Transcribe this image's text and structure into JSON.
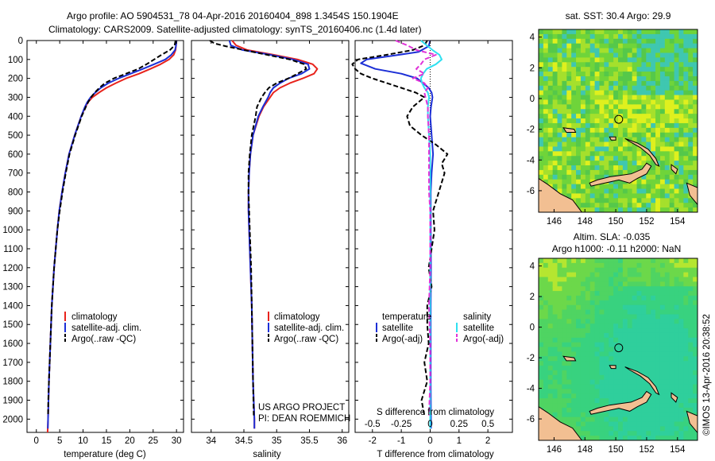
{
  "header": {
    "line1": "Argo profile: AO 5904531_78 04-Apr-2016 20160404_898 1.3454S 150.1904E",
    "line2": "Climatology: CARS2009. Satellite-adjusted climatology: synTS_20160406.nc (1.4d later)"
  },
  "colors": {
    "climatology": "#e8231c",
    "satellite": "#1c2fd6",
    "argo": "#000000",
    "satellite_salinity": "#2fe0f0",
    "argo_salinity": "#e033d8",
    "land": "#f2bf92"
  },
  "depth_axis": {
    "ticks": [
      "0",
      "100",
      "200",
      "300",
      "400",
      "500",
      "600",
      "700",
      "800",
      "900",
      "1000",
      "1100",
      "1200",
      "1300",
      "1400",
      "1500",
      "1600",
      "1700",
      "1800",
      "1900",
      "2000"
    ],
    "ylim": [
      0,
      2070
    ],
    "inverted": true
  },
  "chart_data": [
    {
      "type": "line",
      "name": "temperature",
      "xlabel": "temperature (deg C)",
      "xticks": [
        "0",
        "5",
        "10",
        "15",
        "20",
        "25",
        "30"
      ],
      "xlim": [
        -2,
        31.5
      ],
      "legend": [
        "climatology",
        "satellite-adj. clim.",
        "Argo(..raw -QC)"
      ],
      "series": [
        {
          "name": "climatology",
          "y": [
            0,
            25,
            50,
            75,
            100,
            125,
            150,
            175,
            200,
            225,
            250,
            275,
            300,
            325,
            350,
            400,
            500,
            600,
            700,
            800,
            900,
            1000,
            1200,
            1400,
            1600,
            1800,
            2000,
            2070
          ],
          "x": [
            30.0,
            29.9,
            29.8,
            29.4,
            28.4,
            26.6,
            24.4,
            22.0,
            19.2,
            17.0,
            15.0,
            13.4,
            12.0,
            11.1,
            10.5,
            9.6,
            8.2,
            7.0,
            6.2,
            5.5,
            4.9,
            4.5,
            3.8,
            3.3,
            3.0,
            2.7,
            2.5,
            2.4
          ]
        },
        {
          "name": "satellite-adj. clim.",
          "y": [
            0,
            25,
            50,
            75,
            100,
            125,
            150,
            175,
            200,
            225,
            250,
            275,
            300,
            325,
            350,
            400,
            500,
            600,
            700,
            800,
            900,
            1000,
            1200,
            1400,
            1600,
            1800,
            2000,
            2050
          ],
          "x": [
            30.0,
            29.9,
            29.7,
            28.9,
            27.6,
            25.2,
            22.8,
            20.2,
            17.6,
            15.4,
            13.8,
            12.6,
            11.6,
            10.9,
            10.4,
            9.6,
            8.2,
            7.0,
            6.2,
            5.5,
            4.9,
            4.5,
            3.8,
            3.3,
            3.0,
            2.7,
            2.5,
            2.45
          ]
        },
        {
          "name": "Argo(..raw -QC)",
          "y": [
            0,
            25,
            50,
            75,
            100,
            125,
            150,
            175,
            200,
            225,
            250,
            275,
            300,
            325,
            350,
            400,
            500,
            600,
            700,
            800,
            900,
            1000,
            1200,
            1400,
            1600,
            1800,
            1900,
            1980
          ],
          "x": [
            29.8,
            29.6,
            28.6,
            26.8,
            25.2,
            23.6,
            21.8,
            19.2,
            16.6,
            14.7,
            13.5,
            12.5,
            11.7,
            11.1,
            10.6,
            9.7,
            8.3,
            7.1,
            6.3,
            5.6,
            5.0,
            4.5,
            3.8,
            3.3,
            3.0,
            2.7,
            2.55,
            2.5
          ]
        }
      ]
    },
    {
      "type": "line",
      "name": "salinity",
      "xlabel": "salinity",
      "xticks": [
        "34",
        "34.5",
        "35",
        "35.5",
        "36"
      ],
      "xlim": [
        33.7,
        36.1
      ],
      "legend": [
        "climatology",
        "satellite-adj. clim.",
        "Argo(..raw -QC)"
      ],
      "annotation": [
        "US ARGO PROJECT",
        "PI: DEAN ROEMMICH"
      ],
      "series": [
        {
          "name": "climatology",
          "y": [
            0,
            25,
            50,
            75,
            100,
            125,
            150,
            175,
            200,
            225,
            250,
            275,
            300,
            350,
            400,
            500,
            600,
            700,
            800,
            900,
            1000,
            1200,
            1400,
            1600,
            1800,
            2000,
            2050
          ],
          "x": [
            34.32,
            34.38,
            34.55,
            34.95,
            35.32,
            35.55,
            35.62,
            35.57,
            35.4,
            35.2,
            35.05,
            34.95,
            34.9,
            34.8,
            34.73,
            34.64,
            34.6,
            34.58,
            34.57,
            34.57,
            34.58,
            34.6,
            34.62,
            34.63,
            34.64,
            34.66,
            34.66
          ]
        },
        {
          "name": "satellite-adj. clim.",
          "y": [
            0,
            25,
            50,
            75,
            100,
            125,
            150,
            175,
            200,
            225,
            250,
            275,
            300,
            350,
            400,
            500,
            600,
            700,
            800,
            900,
            1000,
            1200,
            1400,
            1600,
            1800,
            2000,
            2050
          ],
          "x": [
            34.28,
            34.3,
            34.48,
            34.9,
            35.25,
            35.48,
            35.5,
            35.38,
            35.18,
            35.05,
            34.95,
            34.9,
            34.87,
            34.79,
            34.72,
            34.64,
            34.6,
            34.58,
            34.57,
            34.57,
            34.58,
            34.6,
            34.62,
            34.63,
            34.64,
            34.66,
            34.66
          ]
        },
        {
          "name": "Argo(..raw -QC)",
          "y": [
            0,
            15,
            30,
            50,
            75,
            100,
            125,
            150,
            175,
            200,
            225,
            250,
            275,
            300,
            350,
            400,
            500,
            600,
            700,
            800,
            900,
            1000,
            1200,
            1400,
            1600,
            1800,
            1980
          ],
          "x": [
            33.98,
            34.05,
            34.22,
            34.5,
            34.85,
            35.2,
            35.42,
            35.45,
            35.32,
            35.18,
            35.0,
            34.88,
            34.82,
            34.77,
            34.7,
            34.68,
            34.62,
            34.59,
            34.57,
            34.57,
            34.58,
            34.59,
            34.61,
            34.62,
            34.63,
            34.64,
            34.65
          ]
        }
      ]
    },
    {
      "type": "line",
      "name": "differences",
      "xlabel": "T difference from climatology",
      "xlabel_top": "S difference from climatology",
      "xticks": [
        "-2",
        "-1",
        "0",
        "1",
        "2"
      ],
      "xticks_top": [
        "-0.5",
        "-0.25",
        "0",
        "0.25",
        "0.5"
      ],
      "xlim": [
        -2.6,
        2.85
      ],
      "legend": [
        "temperature",
        "satellite",
        "Argo(-adj)",
        "salinity",
        "satellite",
        "Argo(-adj)"
      ],
      "series": [
        {
          "name": "satellite (temperature)",
          "y": [
            0,
            30,
            60,
            80,
            100,
            120,
            150,
            175,
            200,
            225,
            250,
            275,
            300,
            350,
            400,
            500,
            600,
            700,
            800,
            900,
            1000,
            1200,
            1400,
            1600,
            1800,
            2000,
            2050
          ],
          "x": [
            0,
            -0.05,
            -0.4,
            -1.3,
            -2.2,
            -2.4,
            -1.9,
            -1.0,
            -0.45,
            -0.25,
            -0.05,
            0.05,
            0.08,
            0.03,
            0.0,
            0.05,
            0.1,
            0.05,
            0.02,
            0.02,
            0.02,
            0.03,
            0.02,
            0.02,
            0.02,
            0.03,
            0.03
          ]
        },
        {
          "name": "Argo(-adj) (temperature)",
          "y": [
            0,
            25,
            50,
            75,
            100,
            125,
            150,
            175,
            200,
            225,
            250,
            275,
            300,
            350,
            400,
            450,
            500,
            550,
            600,
            650,
            700,
            800,
            900,
            1000,
            1100,
            1200,
            1300,
            1400,
            1500,
            1600,
            1700,
            1800,
            1900,
            1980
          ],
          "x": [
            -0.1,
            -0.2,
            -0.6,
            -1.5,
            -2.5,
            -2.7,
            -2.6,
            -2.4,
            -2.0,
            -1.5,
            -1.0,
            -0.5,
            -0.2,
            -0.6,
            -0.8,
            -0.7,
            -0.3,
            0.2,
            0.6,
            0.4,
            0.5,
            0.3,
            0.1,
            0.15,
            0.05,
            -0.05,
            0.05,
            -0.1,
            -0.1,
            -0.05,
            -0.2,
            -0.1,
            -0.3,
            -0.2
          ]
        },
        {
          "name": "satellite (salinity)",
          "y": [
            0,
            25,
            50,
            75,
            100,
            125,
            150,
            175,
            200,
            225,
            250,
            275,
            300,
            350,
            400,
            500,
            600,
            700,
            800,
            900,
            1000,
            1200,
            1400,
            1600,
            1800,
            2000,
            2050
          ],
          "x": [
            -0.08,
            -0.03,
            0.02,
            0.08,
            0.1,
            0.05,
            -0.03,
            -0.06,
            -0.08,
            -0.07,
            -0.05,
            -0.02,
            -0.01,
            -0.02,
            -0.02,
            -0.01,
            0.0,
            0.0,
            0.0,
            0.0,
            0.0,
            0.0,
            0.0,
            0.0,
            0.0,
            0.0,
            0.0
          ]
        },
        {
          "name": "Argo(-adj) (salinity)",
          "y": [
            0,
            25,
            50,
            75,
            100,
            125,
            150,
            175,
            200,
            225,
            250,
            275,
            300,
            350,
            400,
            500,
            600,
            700,
            800,
            900,
            1000,
            1200,
            1400,
            1600,
            1800,
            1980
          ],
          "x": [
            -0.3,
            -0.2,
            -0.12,
            0.05,
            -0.05,
            -0.08,
            -0.12,
            -0.05,
            -0.15,
            -0.05,
            -0.02,
            -0.05,
            -0.04,
            -0.02,
            -0.02,
            -0.01,
            -0.01,
            -0.01,
            -0.01,
            0.0,
            0.0,
            0.0,
            -0.01,
            0.0,
            0.0,
            -0.01
          ]
        }
      ]
    },
    {
      "type": "heatmap",
      "name": "sst-map",
      "title": "sat. SST: 30.4  Argo: 29.9",
      "xticks": [
        "146",
        "148",
        "150",
        "152",
        "154"
      ],
      "yticks": [
        "4",
        "2",
        "0",
        "-2",
        "-4",
        "-6"
      ],
      "xlim": [
        145,
        155.3
      ],
      "ylim": [
        -7.4,
        4.5
      ],
      "marker": {
        "lon": 150.19,
        "lat": -1.35
      }
    },
    {
      "type": "heatmap",
      "name": "sla-map",
      "title": "Altim. SLA: -0.035",
      "subtitle": "Argo h1000: -0.11  h2000: NaN",
      "xticks": [
        "146",
        "148",
        "150",
        "152",
        "154"
      ],
      "yticks": [
        "4",
        "2",
        "0",
        "-2",
        "-4",
        "-6"
      ],
      "xlim": [
        145,
        155.3
      ],
      "ylim": [
        -7.4,
        4.5
      ],
      "marker": {
        "lon": 150.19,
        "lat": -1.35
      }
    }
  ],
  "credit": "©IMOS 13-Apr-2016 20:38:52"
}
